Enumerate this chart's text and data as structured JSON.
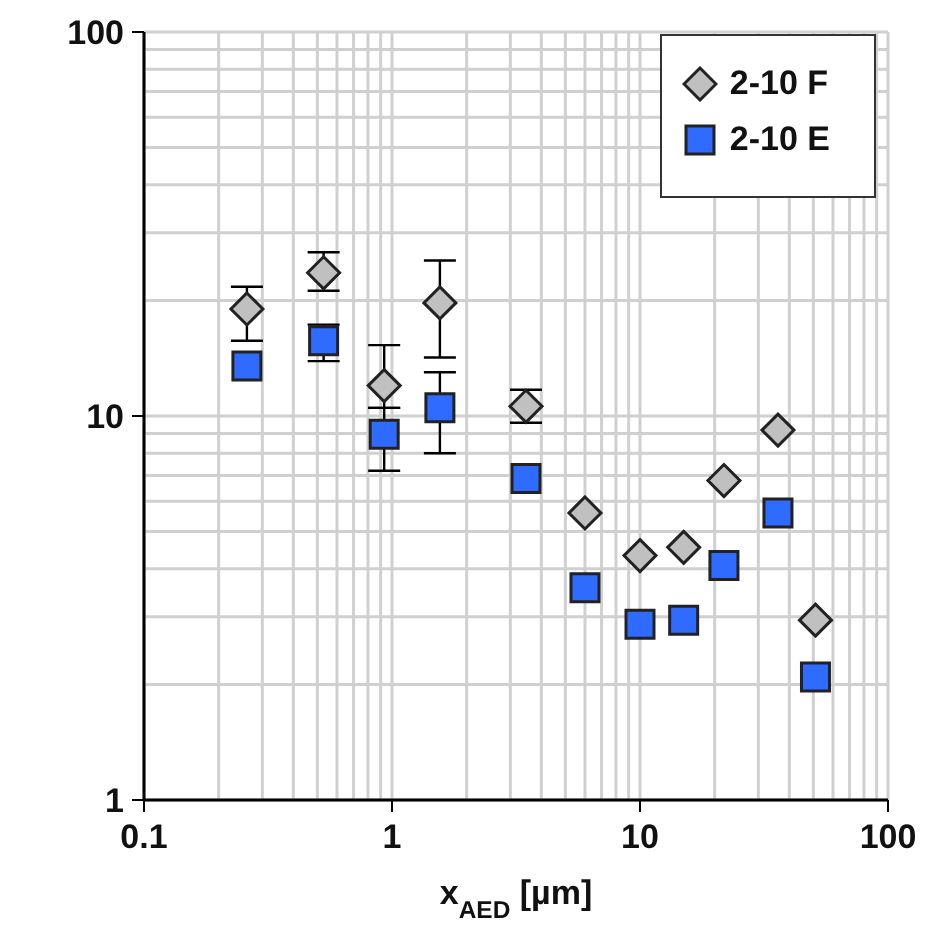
{
  "chart_data": {
    "type": "scatter",
    "xlabel": "x$_{AED}$ [µm]",
    "x": [
      0.26,
      0.53,
      0.93,
      1.56,
      3.47,
      6.0,
      10,
      15,
      21.8,
      36,
      51
    ],
    "series": [
      {
        "name": "2-10 F",
        "color": "#c0c0c0",
        "marker": "diamond",
        "values": [
          19.0,
          23.6,
          12.0,
          19.7,
          10.6,
          5.59,
          4.33,
          4.55,
          6.79,
          9.19,
          2.94
        ],
        "errors": [
          [
            15.7,
            21.7
          ],
          [
            21.2,
            26.7
          ],
          [
            10.5,
            15.3
          ],
          [
            14.2,
            25.4
          ],
          [
            9.6,
            11.7
          ],
          null,
          null,
          null,
          null,
          null,
          null
        ]
      },
      {
        "name": "2-10 E",
        "color": "#2f6bff",
        "marker": "square",
        "values": [
          13.5,
          15.7,
          8.97,
          10.5,
          6.87,
          3.57,
          2.87,
          2.94,
          4.08,
          5.59,
          2.09
        ],
        "errors": [
          null,
          [
            13.9,
            17.3
          ],
          [
            7.2,
            10.5
          ],
          [
            8.0,
            13.0
          ],
          null,
          null,
          null,
          null,
          null,
          null,
          null
        ]
      }
    ],
    "log": "xy",
    "xlim": [
      0.1,
      100
    ],
    "xticks": [
      0.1,
      {
        "value": 0.2,
        "label": null
      },
      {
        "value": 0.3,
        "label": null
      },
      {
        "value": 0.4,
        "label": null
      },
      {
        "value": 0.5,
        "label": null
      },
      {
        "value": 0.6,
        "label": null
      },
      {
        "value": 0.7,
        "label": null
      },
      {
        "value": 0.8,
        "label": null
      },
      {
        "value": 0.9,
        "label": null
      },
      1,
      {
        "value": 2,
        "label": null
      },
      {
        "value": 3,
        "label": null
      },
      {
        "value": 4,
        "label": null
      },
      {
        "value": 5,
        "label": null
      },
      {
        "value": 6,
        "label": null
      },
      {
        "value": 7,
        "label": null
      },
      {
        "value": 8,
        "label": null
      },
      {
        "value": 9,
        "label": null
      },
      10,
      {
        "value": 20,
        "label": null
      },
      {
        "value": 30,
        "label": null
      },
      {
        "value": 40,
        "label": null
      },
      {
        "value": 50,
        "label": null
      },
      {
        "value": 60,
        "label": null
      },
      {
        "value": 70,
        "label": null
      },
      {
        "value": 80,
        "label": null
      },
      {
        "value": 90,
        "label": null
      },
      100
    ],
    "ylim": [
      1,
      100
    ],
    "yticks": [
      1,
      {
        "value": 2,
        "label": null
      },
      {
        "value": 3,
        "label": null
      },
      {
        "value": 4,
        "label": null
      },
      {
        "value": 5,
        "label": null
      },
      {
        "value": 6,
        "label": null
      },
      {
        "value": 7,
        "label": null
      },
      {
        "value": 8,
        "label": null
      },
      {
        "value": 9,
        "label": null
      },
      10,
      {
        "value": 20,
        "label": null
      },
      {
        "value": 30,
        "label": null
      },
      {
        "value": 40,
        "label": null
      },
      {
        "value": 50,
        "label": null
      },
      {
        "value": 60,
        "label": null
      },
      {
        "value": 70,
        "label": null
      },
      {
        "value": 80,
        "label": null
      },
      {
        "value": 90,
        "label": null
      },
      100
    ],
    "grid": true,
    "legend": "top right"
  }
}
